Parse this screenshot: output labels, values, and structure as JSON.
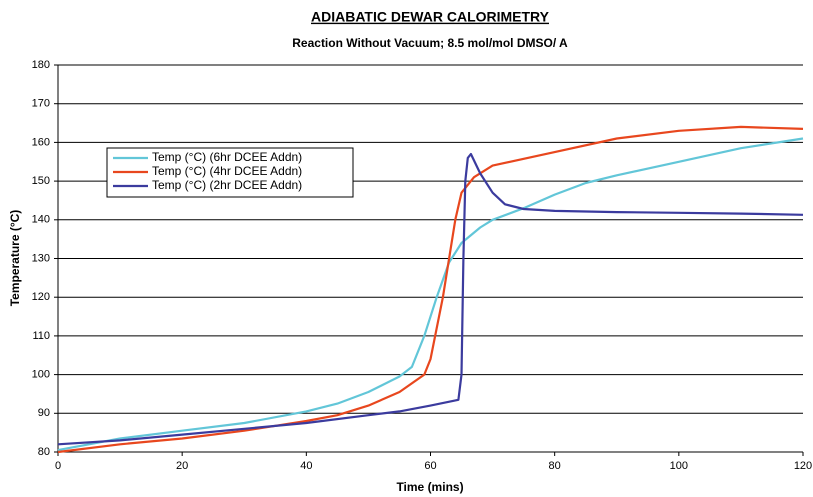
{
  "chart_data": {
    "type": "line",
    "title": "ADIABATIC DEWAR CALORIMETRY",
    "subtitle": "Reaction Without Vacuum; 8.5 mol/mol DMSO/ A",
    "x_label": "Time (mins)",
    "y_label": "Temperature (°C)",
    "xlim": [
      0,
      120
    ],
    "xticks": [
      0,
      20,
      40,
      60,
      80,
      100,
      120
    ],
    "ylim": [
      80,
      180
    ],
    "yticks": [
      80,
      90,
      100,
      110,
      120,
      130,
      140,
      150,
      160,
      170,
      180
    ],
    "grid": true,
    "series": [
      {
        "name": "Temp (°C) (6hr DCEE Addn)",
        "color": "#62c6d8",
        "x": [
          0,
          5,
          10,
          20,
          30,
          40,
          45,
          50,
          55,
          57,
          59,
          61,
          63,
          65,
          68,
          70,
          75,
          80,
          85,
          90,
          100,
          110,
          120
        ],
        "values": [
          80.5,
          82,
          83.5,
          85.5,
          87.5,
          90.5,
          92.5,
          95.5,
          99.5,
          102,
          110,
          120,
          129,
          134,
          138,
          140,
          143,
          146.5,
          149.5,
          151.5,
          155,
          158.5,
          161
        ]
      },
      {
        "name": "Temp (°C) (4hr DCEE Addn)",
        "color": "#e8471e",
        "x": [
          0,
          10,
          20,
          30,
          40,
          45,
          50,
          55,
          59,
          60,
          62,
          64,
          65,
          67,
          70,
          80,
          90,
          100,
          110,
          120
        ],
        "values": [
          80,
          82,
          83.5,
          85.5,
          88,
          89.5,
          92,
          95.5,
          100,
          104,
          120,
          140,
          147,
          151,
          154,
          157.5,
          161,
          163,
          164,
          163.5
        ]
      },
      {
        "name": "Temp (°C) (2hr DCEE Addn)",
        "color": "#3b3b9e",
        "x": [
          0,
          10,
          20,
          30,
          40,
          50,
          55,
          60,
          64.5,
          65,
          65.3,
          65.6,
          66,
          66.5,
          68,
          70,
          72,
          75,
          80,
          90,
          100,
          110,
          120
        ],
        "values": [
          82,
          83,
          84.5,
          86,
          87.5,
          89.5,
          90.5,
          92,
          93.5,
          100,
          130,
          150,
          156,
          157,
          152,
          147,
          144,
          142.8,
          142.3,
          142,
          141.8,
          141.6,
          141.3
        ]
      }
    ]
  }
}
